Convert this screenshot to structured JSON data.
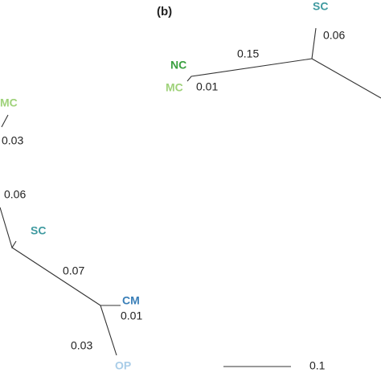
{
  "panel_a": {
    "nodes": [
      "MC",
      "SC",
      "CM",
      "OP"
    ],
    "branches": [
      "0.03",
      "0.06",
      "0.07",
      "0.01",
      "0.03"
    ]
  },
  "panel_b": {
    "label": "(b)",
    "nodes": [
      "SC",
      "NC",
      "MC"
    ],
    "branches": [
      "0.06",
      "0.15",
      "0.01"
    ],
    "scale_bar": "0.1"
  }
}
